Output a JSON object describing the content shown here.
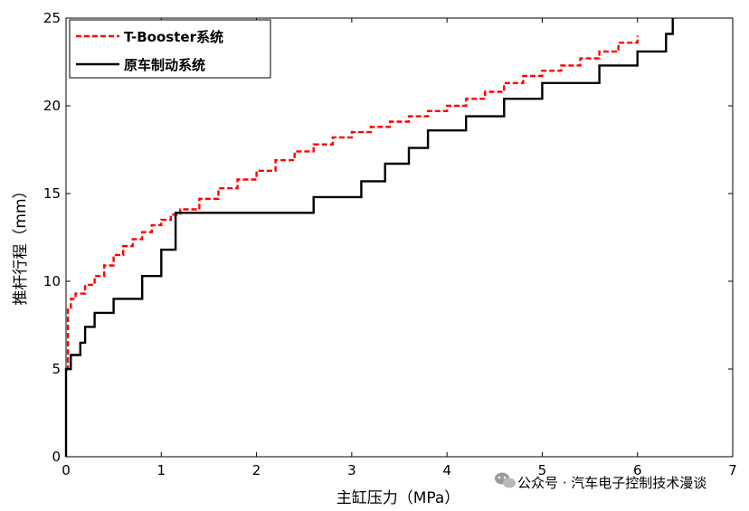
{
  "chart_data": {
    "type": "line",
    "xlabel": "主缸压力（MPa）",
    "ylabel": "推杆行程（mm）",
    "xlim": [
      0,
      7
    ],
    "ylim": [
      0,
      25
    ],
    "x_ticks": [
      "0",
      "1",
      "2",
      "3",
      "4",
      "5",
      "6",
      "7"
    ],
    "y_ticks": [
      "0",
      "5",
      "10",
      "15",
      "20",
      "25"
    ],
    "grid": false,
    "legend_position": "top-left",
    "series": [
      {
        "name": "T-Booster系统",
        "color": "#ff0000",
        "style": "dashed",
        "x": [
          0,
          0.02,
          0.05,
          0.1,
          0.2,
          0.3,
          0.4,
          0.5,
          0.6,
          0.7,
          0.8,
          0.9,
          1.0,
          1.1,
          1.2,
          1.4,
          1.6,
          1.8,
          2.0,
          2.2,
          2.4,
          2.6,
          2.8,
          3.0,
          3.2,
          3.4,
          3.6,
          3.8,
          4.0,
          4.2,
          4.4,
          4.6,
          4.8,
          5.0,
          5.2,
          5.4,
          5.6,
          5.8,
          6.0
        ],
        "y": [
          5,
          8.5,
          9.0,
          9.3,
          9.8,
          10.3,
          10.9,
          11.5,
          12.0,
          12.4,
          12.8,
          13.2,
          13.5,
          13.8,
          14.1,
          14.7,
          15.3,
          15.8,
          16.3,
          16.9,
          17.4,
          17.8,
          18.2,
          18.5,
          18.8,
          19.1,
          19.4,
          19.7,
          20.0,
          20.4,
          20.8,
          21.3,
          21.7,
          22.0,
          22.3,
          22.7,
          23.1,
          23.6,
          24.0
        ]
      },
      {
        "name": "原车制动系统",
        "color": "#000000",
        "style": "solid",
        "x": [
          0,
          0,
          0.05,
          0.15,
          0.2,
          0.3,
          0.5,
          0.8,
          1.0,
          1.15,
          1.15,
          1.5,
          2.0,
          2.4,
          2.6,
          2.8,
          3.0,
          3.1,
          3.35,
          3.6,
          3.8,
          4.0,
          4.2,
          4.45,
          4.6,
          4.8,
          5.0,
          5.2,
          5.4,
          5.6,
          5.8,
          6.0,
          6.2,
          6.3,
          6.37
        ],
        "y": [
          0,
          5.0,
          5.8,
          6.5,
          7.4,
          8.2,
          9.0,
          10.3,
          11.8,
          13.0,
          13.9,
          13.9,
          13.9,
          13.9,
          14.8,
          14.8,
          14.8,
          15.7,
          16.7,
          17.6,
          18.6,
          18.6,
          19.4,
          19.4,
          20.4,
          20.4,
          21.3,
          21.3,
          21.3,
          22.3,
          22.3,
          23.1,
          23.1,
          24.1,
          25.0
        ]
      }
    ]
  },
  "watermark": {
    "icon": "wechat-icon",
    "text": "公众号 · 汽车电子控制技术漫谈"
  }
}
